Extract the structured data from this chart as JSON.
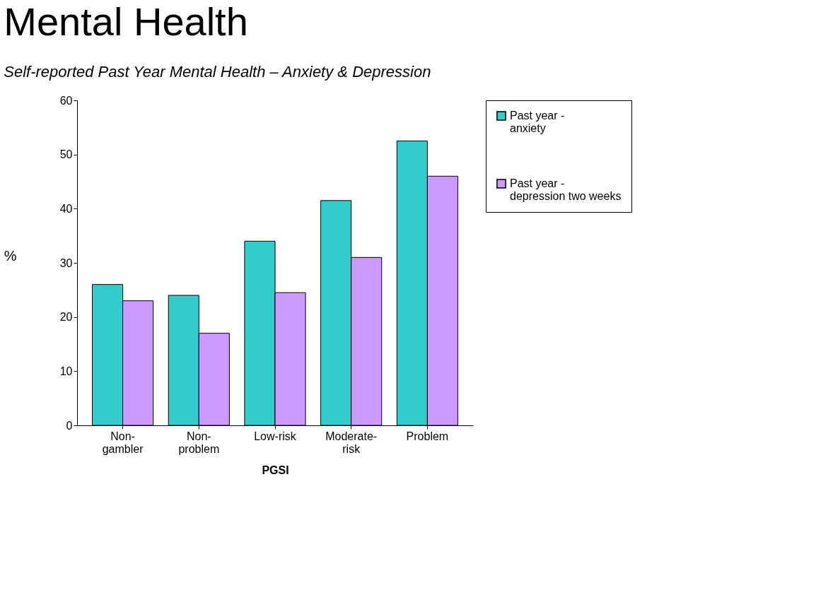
{
  "chart_data": {
    "type": "bar",
    "title": "Mental Health",
    "subtitle": "Self-reported Past Year Mental Health – Anxiety & Depression",
    "xlabel": "PGSI",
    "ylabel": "%",
    "categories": [
      "Non-gambler",
      "Non-problem",
      "Low-risk",
      "Moderate-risk",
      "Problem"
    ],
    "series": [
      {
        "name": "Past year - anxiety",
        "color": "#33cccc",
        "values": [
          26,
          24,
          34,
          41.5,
          52.5
        ]
      },
      {
        "name": "Past year - depression two weeks",
        "color": "#cc99ff",
        "values": [
          23,
          17,
          24.5,
          31,
          46
        ]
      }
    ],
    "ylim": [
      0,
      60
    ],
    "yticks": [
      0,
      10,
      20,
      30,
      40,
      50,
      60
    ],
    "grid": false,
    "legend": "right"
  }
}
